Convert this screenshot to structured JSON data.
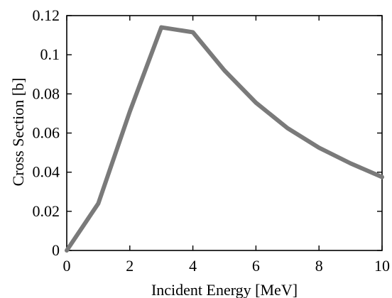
{
  "chart_data": {
    "type": "line",
    "title": "",
    "xlabel": "Incident Energy [MeV]",
    "ylabel": "Cross Section [b]",
    "xlim": [
      0,
      10
    ],
    "ylim": [
      0,
      0.12
    ],
    "x_ticks": [
      0,
      2,
      4,
      6,
      8,
      10
    ],
    "x_tick_labels": [
      "0",
      "2",
      "4",
      "6",
      "8",
      "10"
    ],
    "y_ticks": [
      0,
      0.02,
      0.04,
      0.06,
      0.08,
      0.1,
      0.12
    ],
    "y_tick_labels": [
      "0",
      "0.02",
      "0.04",
      "0.06",
      "0.08",
      "0.1",
      "0.12"
    ],
    "grid": false,
    "series": [
      {
        "color": "#7a7a7a",
        "x": [
          0,
          1,
          2,
          3,
          4,
          5,
          6,
          7,
          8,
          9,
          10
        ],
        "y": [
          0,
          0.024,
          0.071,
          0.114,
          0.1115,
          0.092,
          0.0755,
          0.0625,
          0.0525,
          0.0445,
          0.0375
        ]
      }
    ]
  }
}
